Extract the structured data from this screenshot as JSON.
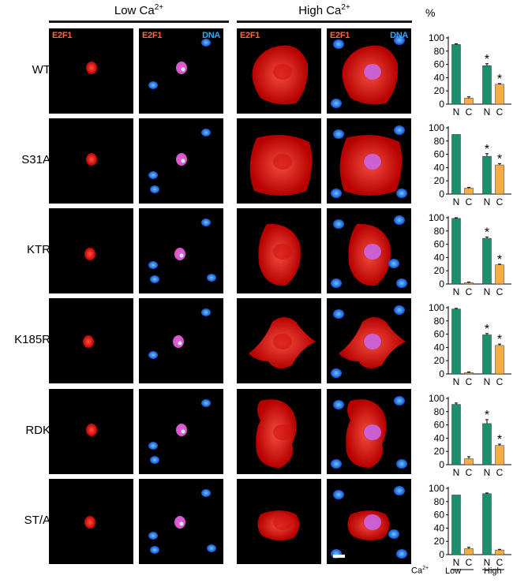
{
  "headers": {
    "low": "Low Ca",
    "high": "High Ca",
    "superscript": "2+"
  },
  "channel_labels": {
    "e2f1": "E2F1",
    "dna": "DNA"
  },
  "percent_label": "%",
  "ca_label": "Ca",
  "ca_superscript": "2+",
  "group_labels": [
    "Low",
    "High"
  ],
  "rows": [
    {
      "label": "WT"
    },
    {
      "label": "S31A"
    },
    {
      "label": "KTR"
    },
    {
      "label": "K185R"
    },
    {
      "label": "RDK"
    },
    {
      "label": "ST/A"
    }
  ],
  "colors": {
    "nuclear": "#1b8f6e",
    "cytoplasmic": "#f5ac45",
    "e2f1_signal": "#ff2a1a",
    "dna_signal": "#1d8cff"
  },
  "chart_data": [
    {
      "type": "bar",
      "row": "WT",
      "categories": [
        "N",
        "C",
        "N",
        "C"
      ],
      "groups": [
        "Low",
        "High"
      ],
      "values": [
        90,
        9,
        58,
        30
      ],
      "errors": [
        1,
        2,
        3,
        1
      ],
      "significant": [
        false,
        false,
        true,
        true
      ],
      "ylim": [
        0,
        100
      ],
      "ticks": [
        0,
        20,
        40,
        60,
        80,
        100
      ],
      "ylabel": "%"
    },
    {
      "type": "bar",
      "row": "S31A",
      "categories": [
        "N",
        "C",
        "N",
        "C"
      ],
      "groups": [
        "Low",
        "High"
      ],
      "values": [
        90,
        9,
        57,
        44
      ],
      "errors": [
        0,
        1,
        4,
        2
      ],
      "significant": [
        false,
        false,
        true,
        true
      ],
      "ylim": [
        0,
        100
      ],
      "ticks": [
        0,
        20,
        40,
        60,
        80,
        100
      ]
    },
    {
      "type": "bar",
      "row": "KTR",
      "categories": [
        "N",
        "C",
        "N",
        "C"
      ],
      "groups": [
        "Low",
        "High"
      ],
      "values": [
        99,
        2,
        69,
        29
      ],
      "errors": [
        1,
        1,
        2,
        1
      ],
      "significant": [
        false,
        false,
        true,
        true
      ],
      "ylim": [
        0,
        100
      ],
      "ticks": [
        0,
        20,
        40,
        60,
        80,
        100
      ]
    },
    {
      "type": "bar",
      "row": "K185R",
      "categories": [
        "N",
        "C",
        "N",
        "C"
      ],
      "groups": [
        "Low",
        "High"
      ],
      "values": [
        98,
        2,
        59,
        43
      ],
      "errors": [
        1,
        1,
        2,
        2
      ],
      "significant": [
        false,
        false,
        true,
        true
      ],
      "ylim": [
        0,
        100
      ],
      "ticks": [
        0,
        20,
        40,
        60,
        80,
        100
      ]
    },
    {
      "type": "bar",
      "row": "RDK",
      "categories": [
        "N",
        "C",
        "N",
        "C"
      ],
      "groups": [
        "Low",
        "High"
      ],
      "values": [
        91,
        9,
        62,
        29
      ],
      "errors": [
        2,
        3,
        6,
        2
      ],
      "significant": [
        false,
        false,
        true,
        true
      ],
      "ylim": [
        0,
        100
      ],
      "ticks": [
        0,
        20,
        40,
        60,
        80,
        100
      ]
    },
    {
      "type": "bar",
      "row": "ST/A",
      "categories": [
        "N",
        "C",
        "N",
        "C"
      ],
      "groups": [
        "Low",
        "High"
      ],
      "values": [
        90,
        9,
        92,
        7
      ],
      "errors": [
        0,
        2,
        1,
        1
      ],
      "significant": [
        false,
        false,
        false,
        false
      ],
      "ylim": [
        0,
        100
      ],
      "ticks": [
        0,
        20,
        40,
        60,
        80,
        100
      ]
    }
  ]
}
